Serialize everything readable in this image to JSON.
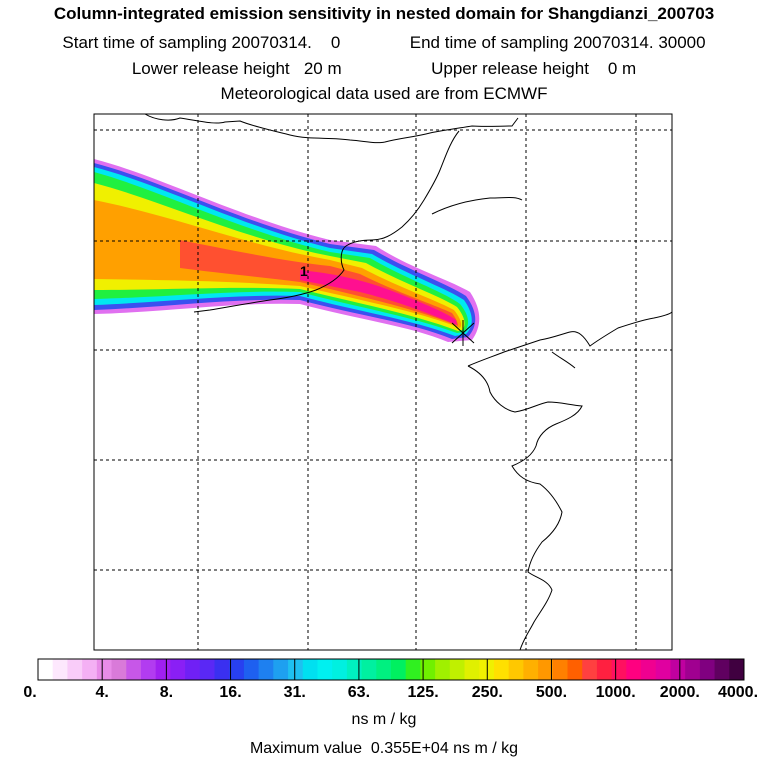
{
  "header": {
    "title": "Column-integrated emission sensitivity in nested domain for Shangdianzi_200703",
    "start_label": "Start time of sampling",
    "start_value": "20070314.",
    "start_hour": "0",
    "end_label": "End time of sampling",
    "end_value": "20070314. 30000",
    "lower_label": "Lower release height",
    "lower_value": "20 m",
    "upper_label": "Upper release height",
    "upper_value": "0 m",
    "met_line": "Meteorological data used are from ECMWF"
  },
  "chart_data": {
    "type": "heatmap",
    "title": "Column-integrated emission sensitivity in nested domain for Shangdianzi_200703",
    "grid": true,
    "colorbar": {
      "ticks": [
        "0.",
        "4.",
        "8.",
        "16.",
        "31.",
        "63.",
        "125.",
        "250.",
        "500.",
        "1000.",
        "2000.",
        "4000."
      ],
      "units": "ns m / kg",
      "colors": [
        "#ffffff",
        "#fde8fd",
        "#f9ccf9",
        "#f4b0f4",
        "#e88ce8",
        "#d97ad9",
        "#c757e8",
        "#b23cf0",
        "#a020f0",
        "#8a1ff5",
        "#7020f5",
        "#5a28f5",
        "#3a30f0",
        "#2840f0",
        "#1e60f0",
        "#1e80f0",
        "#1ea0f0",
        "#1ec0f0",
        "#00e0f0",
        "#00f0f0",
        "#00f0e0",
        "#00f0c0",
        "#00f0a0",
        "#00f080",
        "#00f060",
        "#30f020",
        "#70f000",
        "#a0f000",
        "#c0f000",
        "#e0f000",
        "#f0f000",
        "#ffe000",
        "#ffc800",
        "#ffb000",
        "#ff9800",
        "#ff8000",
        "#ff6000",
        "#ff4040",
        "#ff2040",
        "#ff1060",
        "#ff0080",
        "#f00090",
        "#e000a0",
        "#c000a0",
        "#a00090",
        "#800080",
        "#600060",
        "#400040"
      ]
    },
    "max_value_label": "Maximum value",
    "max_value": "0.355E+04 ns m / kg",
    "plume": {
      "source_marker": "station-cross",
      "max_marker": "1",
      "direction": "westward"
    }
  }
}
